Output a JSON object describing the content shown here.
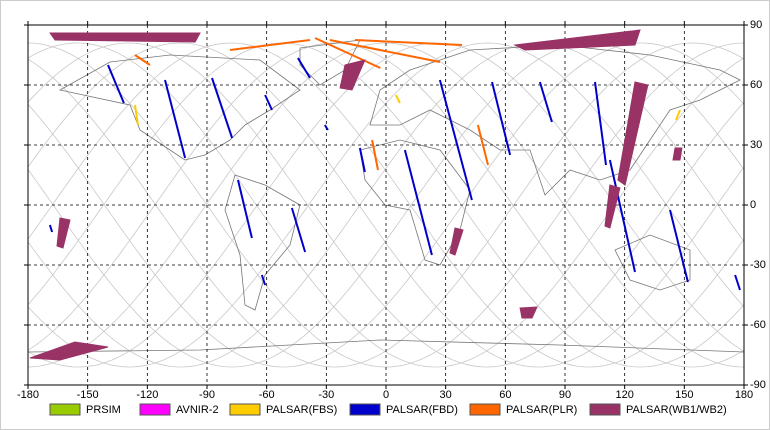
{
  "chart_data": {
    "type": "map",
    "xlim": [
      -180,
      180
    ],
    "ylim": [
      -90,
      90
    ],
    "xticks": [
      -180,
      -150,
      -120,
      -90,
      -60,
      -30,
      0,
      30,
      60,
      90,
      120,
      150,
      180
    ],
    "yticks": [
      90,
      60,
      30,
      0,
      -30,
      -60,
      -90
    ],
    "grid": true,
    "series": [
      {
        "name": "PRSIM",
        "color": "#99cc00"
      },
      {
        "name": "AVNIR-2",
        "color": "#ff00ff"
      },
      {
        "name": "PALSAR(FBS)",
        "color": "#ffcc00",
        "tracks": [
          {
            "lon": [
              -126.2,
              -124.7
            ],
            "lat": [
              50,
              40
            ]
          },
          {
            "lon": [
              5,
              7
            ],
            "lat": [
              55,
              51
            ]
          },
          {
            "lon": [
              147.8,
              145.8
            ],
            "lat": [
              47.5,
              42.5
            ]
          }
        ]
      },
      {
        "name": "PALSAR(FBD)",
        "color": "#0000cc",
        "tracks": [
          {
            "lon": [
              -139.8,
              -131.8
            ],
            "lat": [
              70,
              51
            ]
          },
          {
            "lon": [
              -111.1,
              -101
            ],
            "lat": [
              62.5,
              23.5
            ]
          },
          {
            "lon": [
              -87.5,
              -77.4
            ],
            "lat": [
              63.5,
              33.5
            ]
          },
          {
            "lon": [
              -60.8,
              -57.3
            ],
            "lat": [
              55,
              47.5
            ]
          },
          {
            "lon": [
              -74.4,
              -67.4
            ],
            "lat": [
              12.5,
              -16.5
            ]
          },
          {
            "lon": [
              -47.3,
              -40.7
            ],
            "lat": [
              -1.5,
              -23.5
            ]
          },
          {
            "lon": [
              -44.3,
              -38.2
            ],
            "lat": [
              73.5,
              63.5
            ]
          },
          {
            "lon": [
              -13.1,
              -10.6
            ],
            "lat": [
              28.5,
              16.5
            ]
          },
          {
            "lon": [
              9.5,
              23.1
            ],
            "lat": [
              27.5,
              -25
            ]
          },
          {
            "lon": [
              27.1,
              43.2
            ],
            "lat": [
              62.5,
              2.5
            ]
          },
          {
            "lon": [
              53.3,
              62.4
            ],
            "lat": [
              61.5,
              25
            ]
          },
          {
            "lon": [
              77.4,
              83.4
            ],
            "lat": [
              61.5,
              41.5
            ]
          },
          {
            "lon": [
              105.1,
              110.6
            ],
            "lat": [
              61.5,
              20
            ]
          },
          {
            "lon": [
              112.6,
              125.2
            ],
            "lat": [
              22.5,
              -33.5
            ]
          },
          {
            "lon": [
              142.8,
              151.8
            ],
            "lat": [
              -2.5,
              -38.5
            ]
          },
          {
            "lon": [
              175.5,
              178
            ],
            "lat": [
              -35,
              -42.5
            ]
          },
          {
            "lon": [
              -169,
              -167.9
            ],
            "lat": [
              -10,
              -13.5
            ]
          },
          {
            "lon": [
              -30.7,
              -29.2
            ],
            "lat": [
              40,
              37.5
            ]
          },
          {
            "lon": [
              -62.4,
              -60.8
            ],
            "lat": [
              -35,
              -40
            ]
          }
        ]
      },
      {
        "name": "PALSAR(PLR)",
        "color": "#ff6600",
        "tracks": [
          {
            "lon": [
              -78.4,
              -38.2
            ],
            "lat": [
              77.5,
              82.5
            ]
          },
          {
            "lon": [
              -35.7,
              -2.8
            ],
            "lat": [
              83.5,
              68.5
            ]
          },
          {
            "lon": [
              -28.2,
              27.1
            ],
            "lat": [
              82.5,
              71.5
            ]
          },
          {
            "lon": [
              -15.6,
              38.2
            ],
            "lat": [
              82.5,
              80
            ]
          },
          {
            "lon": [
              -7,
              -4
            ],
            "lat": [
              32.5,
              17.5
            ]
          },
          {
            "lon": [
              46.2,
              51.3
            ],
            "lat": [
              40,
              20
            ]
          },
          {
            "lon": [
              -126.2,
              -118.7
            ],
            "lat": [
              75,
              70
            ]
          }
        ]
      },
      {
        "name": "PALSAR(WB1/WB2)",
        "color": "#993366",
        "tracks": [
          {
            "lon": [
              -168.9,
              -93.5,
              -96,
              -166.4
            ],
            "lat": [
              86,
              86,
              81.5,
              82.5
            ]
          },
          {
            "lon": [
              64.8,
              127.7,
              125.2,
              69.9
            ],
            "lat": [
              80,
              87.5,
              80,
              77.5
            ]
          },
          {
            "lon": [
              -20.6,
              -10.6,
              -17.1,
              -23.1
            ],
            "lat": [
              70,
              72.5,
              57.5,
              58.5
            ]
          },
          {
            "lon": [
              125.2,
              131.7,
              120.2,
              116.6
            ],
            "lat": [
              61.5,
              60,
              10,
              12.5
            ]
          },
          {
            "lon": [
              112.6,
              117.6,
              112.6,
              110.1
            ],
            "lat": [
              10,
              8.5,
              -11.5,
              -10.5
            ]
          },
          {
            "lon": [
              -163.9,
              -158.9,
              -162.4,
              -165.4
            ],
            "lat": [
              -6.5,
              -7.5,
              -21.5,
              -20.5
            ]
          },
          {
            "lon": [
              34.7,
              38.7,
              34.7,
              32.2
            ],
            "lat": [
              -11.5,
              -12.5,
              -25,
              -24
            ]
          },
          {
            "lon": [
              67.4,
              75.9,
              73.4,
              68.4
            ],
            "lat": [
              -51.5,
              -51,
              -56.5,
              -56.5
            ]
          },
          {
            "lon": [
              145.3,
              148.8,
              147.8,
              144.3
            ],
            "lat": [
              28.5,
              28.5,
              22.5,
              22.5
            ]
          },
          {
            "lon": [
              -179,
              -156.4,
              -139.8,
              -163.9
            ],
            "lat": [
              -76.5,
              -68.5,
              -71,
              -77.5
            ]
          }
        ]
      }
    ]
  }
}
